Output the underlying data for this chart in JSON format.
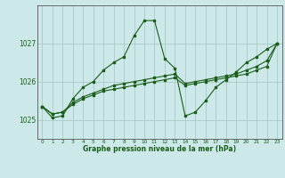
{
  "bg_color": "#cce8e8",
  "grid_color": "#aacaca",
  "line_color": "#1a5e1a",
  "title": "Graphe pression niveau de la mer (hPa)",
  "xlim": [
    -0.5,
    23.5
  ],
  "ylim": [
    1024.5,
    1028.0
  ],
  "yticks": [
    1025,
    1026,
    1027
  ],
  "xticks": [
    0,
    1,
    2,
    3,
    4,
    5,
    6,
    7,
    8,
    9,
    10,
    11,
    12,
    13,
    14,
    15,
    16,
    17,
    18,
    19,
    20,
    21,
    22,
    23
  ],
  "series": [
    {
      "x": [
        0,
        1,
        2,
        3,
        4,
        5,
        6,
        7,
        8,
        9,
        10,
        11,
        12,
        13,
        14,
        15,
        16,
        17,
        18,
        19,
        20,
        21,
        22,
        23
      ],
      "y": [
        1025.35,
        1025.15,
        1025.2,
        1025.4,
        1025.55,
        1025.65,
        1025.75,
        1025.8,
        1025.85,
        1025.9,
        1025.95,
        1026.0,
        1026.05,
        1026.1,
        1025.9,
        1025.95,
        1026.0,
        1026.05,
        1026.1,
        1026.15,
        1026.2,
        1026.3,
        1026.4,
        1027.0
      ]
    },
    {
      "x": [
        0,
        1,
        2,
        3,
        4,
        5,
        6,
        7,
        8,
        9,
        10,
        11,
        12,
        13,
        14,
        15,
        16,
        17,
        18,
        19,
        20,
        21,
        22,
        23
      ],
      "y": [
        1025.35,
        1025.15,
        1025.2,
        1025.45,
        1025.6,
        1025.7,
        1025.8,
        1025.9,
        1025.95,
        1026.0,
        1026.05,
        1026.1,
        1026.15,
        1026.2,
        1025.95,
        1026.0,
        1026.05,
        1026.1,
        1026.15,
        1026.2,
        1026.3,
        1026.4,
        1026.55,
        1027.0
      ]
    },
    {
      "x": [
        0,
        1,
        2,
        3,
        4,
        5,
        6,
        7,
        8,
        9,
        10,
        11,
        12,
        13,
        14,
        15,
        16,
        17,
        18,
        19,
        20,
        21,
        22,
        23
      ],
      "y": [
        1025.35,
        1025.05,
        1025.1,
        1025.55,
        1025.85,
        1026.0,
        1026.3,
        1026.5,
        1026.65,
        1027.2,
        1027.6,
        1027.6,
        1026.6,
        1026.35,
        1025.1,
        1025.2,
        1025.5,
        1025.85,
        1026.05,
        1026.25,
        1026.5,
        1026.65,
        1026.85,
        1027.0
      ]
    }
  ]
}
